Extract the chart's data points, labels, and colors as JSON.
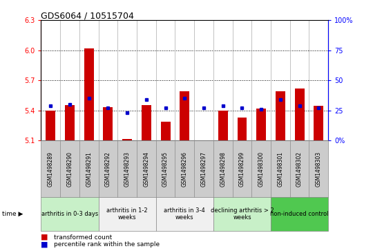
{
  "title": "GDS6064 / 10515704",
  "samples": [
    "GSM1498289",
    "GSM1498290",
    "GSM1498291",
    "GSM1498292",
    "GSM1498293",
    "GSM1498294",
    "GSM1498295",
    "GSM1498296",
    "GSM1498297",
    "GSM1498298",
    "GSM1498299",
    "GSM1498300",
    "GSM1498301",
    "GSM1498302",
    "GSM1498303"
  ],
  "red_values": [
    5.395,
    5.455,
    6.02,
    5.435,
    5.115,
    5.455,
    5.29,
    5.59,
    5.102,
    5.4,
    5.33,
    5.42,
    5.59,
    5.62,
    5.445
  ],
  "blue_values": [
    29,
    30,
    35,
    27,
    23,
    34,
    27,
    35,
    27,
    29,
    27,
    26,
    34,
    29,
    27
  ],
  "ylim_left": [
    5.1,
    6.3
  ],
  "ylim_right": [
    0,
    100
  ],
  "yticks_left": [
    5.1,
    5.4,
    5.7,
    6.0,
    6.3
  ],
  "yticks_right": [
    0,
    25,
    50,
    75,
    100
  ],
  "ytick_labels_right": [
    "0%",
    "25",
    "50",
    "75",
    "100%"
  ],
  "groups": [
    {
      "label": "arthritis in 0-3 days",
      "start": 0,
      "end": 3,
      "color": "#c8f0c8"
    },
    {
      "label": "arthritis in 1-2\nweeks",
      "start": 3,
      "end": 6,
      "color": "#f0f0f0"
    },
    {
      "label": "arthritis in 3-4\nweeks",
      "start": 6,
      "end": 9,
      "color": "#f0f0f0"
    },
    {
      "label": "declining arthritis > 2\nweeks",
      "start": 9,
      "end": 12,
      "color": "#c8f0c8"
    },
    {
      "label": "non-induced control",
      "start": 12,
      "end": 15,
      "color": "#50c850"
    }
  ],
  "bar_color": "#cc0000",
  "dot_color": "#0000cc",
  "baseline": 5.1,
  "legend_red": "transformed count",
  "legend_blue": "percentile rank within the sample",
  "bar_width": 0.5
}
